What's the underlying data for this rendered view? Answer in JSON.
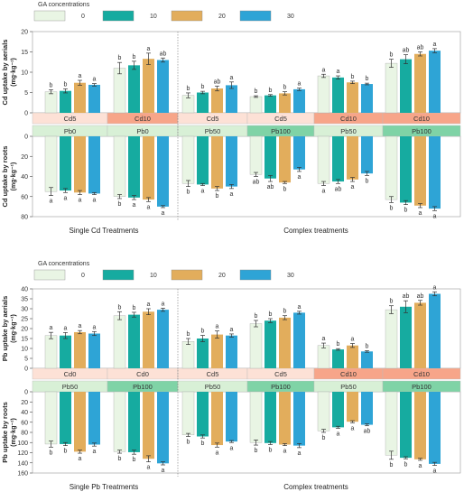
{
  "legend": {
    "title": "GA concentrations",
    "items": [
      "0",
      "10",
      "20",
      "30"
    ],
    "colors": [
      "#e9f5e4",
      "#16aba0",
      "#e2ad5c",
      "#2ea4d6"
    ]
  },
  "band_colors": {
    "Cd5": "#fde1d6",
    "Cd10": "#f7a589",
    "Cd0": "#fde1d6",
    "Pb0": "#d8f0d6",
    "Pb50": "#d8f0d6",
    "Pb100": "#7fd3a6"
  },
  "chart_data": [
    {
      "type": "bar",
      "title": "",
      "group_title": "Single Cd Treatments",
      "group_title_right": "Complex treatments",
      "ylabel_top": "Cd uptake by aerials",
      "ylabel_bottom": "Cd uptake by roots",
      "yunit": "(mg·kg⁻¹)",
      "ylim_top": [
        0,
        20
      ],
      "yticks_top": [
        "0",
        "5",
        "10",
        "15",
        "20"
      ],
      "ylim_bottom": [
        0,
        80
      ],
      "yticks_bottom": [
        "0",
        "20",
        "40",
        "60",
        "80"
      ],
      "row1_labels": [
        "Cd5",
        "Cd10",
        "Cd5",
        "Cd5",
        "Cd10",
        "Cd10"
      ],
      "row2_labels": [
        "Pb0",
        "Pb0",
        "Pb50",
        "Pb100",
        "Pb50",
        "Pb100"
      ],
      "series": [
        {
          "name": "0",
          "top": [
            5.2,
            11.0,
            4.3,
            4.0,
            9.1,
            12.2
          ],
          "bottom": [
            55,
            60,
            47,
            38,
            47,
            63
          ]
        },
        {
          "name": "10",
          "top": [
            5.4,
            11.7,
            5.0,
            4.3,
            8.7,
            13.2
          ],
          "bottom": [
            54,
            61,
            48,
            42,
            45,
            66
          ]
        },
        {
          "name": "20",
          "top": [
            7.4,
            13.3,
            6.0,
            4.8,
            7.5,
            14.5
          ],
          "bottom": [
            56,
            63,
            52,
            46,
            43,
            69
          ]
        },
        {
          "name": "30",
          "top": [
            6.9,
            13.0,
            6.8,
            5.8,
            7.1,
            15.3
          ],
          "bottom": [
            57,
            70,
            50,
            33,
            37,
            72
          ]
        }
      ],
      "top_err": [
        [
          0.5,
          1.4,
          0.6,
          0.2,
          0.4,
          1.0
        ],
        [
          0.5,
          1.0,
          0.3,
          0.2,
          0.4,
          1.1
        ],
        [
          0.6,
          1.4,
          0.6,
          0.4,
          0.3,
          0.5
        ],
        [
          0.3,
          0.5,
          0.8,
          0.3,
          0.2,
          0.5
        ]
      ],
      "bottom_err": [
        [
          4,
          2,
          3,
          2,
          2,
          3
        ],
        [
          2,
          2,
          1,
          3,
          2,
          2
        ],
        [
          2,
          2,
          2,
          1,
          2,
          2
        ],
        [
          1,
          1,
          2,
          2,
          2,
          2
        ]
      ],
      "top_letters": [
        [
          "b",
          "b",
          "b",
          "b",
          "a",
          "b"
        ],
        [
          "b",
          "b",
          "b",
          "b",
          "a",
          "ab"
        ],
        [
          "a",
          "a",
          "ab",
          "b",
          "b",
          "ab"
        ],
        [
          "a",
          "ab",
          "a",
          "a",
          "b",
          "a"
        ]
      ],
      "bottom_letters": [
        [
          "a",
          "b",
          "b",
          "ab",
          "a",
          "b"
        ],
        [
          "a",
          "a",
          "a",
          "ab",
          "ab",
          "b"
        ],
        [
          "a",
          "a",
          "b",
          "b",
          "a",
          "a"
        ],
        [
          "a",
          "a",
          "a",
          "a",
          "b",
          "a"
        ]
      ]
    },
    {
      "type": "bar",
      "title": "",
      "group_title": "Single Pb Treatments",
      "group_title_right": "Complex treatments",
      "ylabel_top": "Pb uptake by aerials",
      "ylabel_bottom": "Pb uptake by roots",
      "yunit": "(mg·kg⁻¹)",
      "ylim_top": [
        0,
        40
      ],
      "yticks_top": [
        "0",
        "5",
        "10",
        "15",
        "20",
        "25",
        "30",
        "35",
        "40"
      ],
      "ylim_bottom": [
        0,
        160
      ],
      "yticks_bottom": [
        "0",
        "20",
        "40",
        "60",
        "80",
        "100",
        "120",
        "140",
        "160"
      ],
      "row1_labels": [
        "Cd0",
        "Cd0",
        "Cd5",
        "Cd5",
        "Cd10",
        "Cd10"
      ],
      "row2_labels": [
        "Pb50",
        "Pb100",
        "Pb50",
        "Pb100",
        "Pb50",
        "Pb100"
      ],
      "series": [
        {
          "name": "0",
          "top": [
            16.5,
            26.5,
            13.5,
            22.5,
            11.5,
            29.5
          ],
          "bottom": [
            103,
            118,
            85,
            100,
            77,
            125
          ]
        },
        {
          "name": "10",
          "top": [
            16.5,
            27.0,
            15.0,
            24.0,
            9.5,
            31.0
          ],
          "bottom": [
            103,
            119,
            88,
            101,
            70,
            130
          ]
        },
        {
          "name": "20",
          "top": [
            18.2,
            28.5,
            17.0,
            25.5,
            11.5,
            33.0
          ],
          "bottom": [
            118,
            132,
            105,
            104,
            59,
            133
          ]
        },
        {
          "name": "30",
          "top": [
            17.5,
            29.5,
            16.5,
            28.0,
            8.5,
            37.5
          ],
          "bottom": [
            104,
            141,
            98,
            106,
            65,
            142
          ]
        }
      ],
      "top_err": [
        [
          1.6,
          2.0,
          1.5,
          1.6,
          1.2,
          2.0
        ],
        [
          1.5,
          1.2,
          1.6,
          1.0,
          0.4,
          3.0
        ],
        [
          0.8,
          1.5,
          1.8,
          1.0,
          1.0,
          1.2
        ],
        [
          1.0,
          0.8,
          0.8,
          0.7,
          0.4,
          1.0
        ]
      ],
      "bottom_err": [
        [
          6,
          3,
          3,
          5,
          3,
          8
        ],
        [
          3,
          4,
          3,
          3,
          2,
          2
        ],
        [
          3,
          6,
          4,
          2,
          2,
          2
        ],
        [
          3,
          3,
          2,
          4,
          2,
          3
        ]
      ],
      "top_letters": [
        [
          "a",
          "b",
          "b",
          "b",
          "a",
          "b"
        ],
        [
          "a",
          "b",
          "b",
          "b",
          "b",
          "ab"
        ],
        [
          "a",
          "a",
          "a",
          "b",
          "a",
          "ab"
        ],
        [
          "a",
          "a",
          "a",
          "a",
          "b",
          "a"
        ]
      ],
      "bottom_letters": [
        [
          "b",
          "b",
          "b",
          "b",
          "b",
          "b"
        ],
        [
          "b",
          "b",
          "b",
          "b",
          "a",
          "b"
        ],
        [
          "a",
          "a",
          "a",
          "a",
          "a",
          "a"
        ],
        [
          "a",
          "a",
          "a",
          "a",
          "ab",
          "a"
        ]
      ]
    }
  ]
}
